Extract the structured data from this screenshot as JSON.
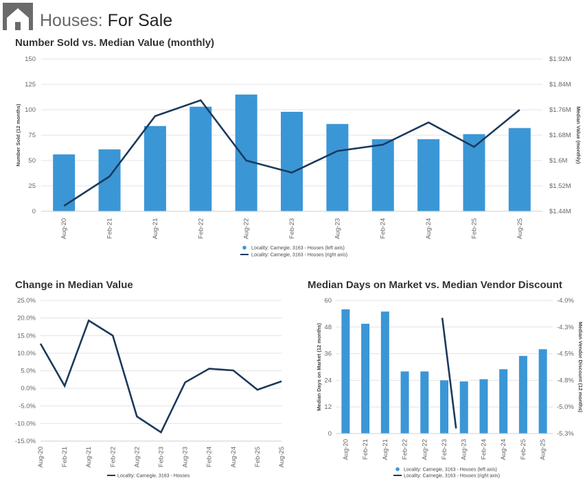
{
  "page": {
    "title_part1": "Houses:",
    "title_part2": "For Sale",
    "icon": "house-icon"
  },
  "colors": {
    "bar": "#3b96d6",
    "line": "#1b3a5c",
    "grid": "#e3e3e3",
    "text": "#666666"
  },
  "chart_data": [
    {
      "id": "sold_vs_value",
      "type": "bar+line",
      "title": "Number Sold vs. Median Value (monthly)",
      "categories": [
        "Aug-20",
        "Feb-21",
        "Aug-21",
        "Feb-22",
        "Aug-22",
        "Feb-23",
        "Aug-23",
        "Feb-24",
        "Aug-24",
        "Feb-25",
        "Aug-25"
      ],
      "ylabel": "Number Sold (12 months)",
      "y2label": "Median Value (monthly)",
      "ylim": [
        0,
        150
      ],
      "yticks": [
        "0",
        "25",
        "50",
        "75",
        "100",
        "125",
        "150"
      ],
      "y2lim": [
        1.44,
        1.92
      ],
      "y2ticks": [
        "$1.44M",
        "$1.52M",
        "$1.6M",
        "$1.68M",
        "$1.76M",
        "$1.84M",
        "$1.92M"
      ],
      "series": [
        {
          "name": "Locality: Carnegie, 3163 - Houses (left axis)",
          "kind": "bar",
          "values": [
            56,
            61,
            84,
            103,
            115,
            98,
            86,
            71,
            71,
            76,
            82
          ]
        },
        {
          "name": "Locality: Carnegie, 3163 - Houses (right axis)",
          "kind": "line",
          "values": [
            1.457,
            1.55,
            1.74,
            1.79,
            1.6,
            1.562,
            1.63,
            1.65,
            1.72,
            1.643,
            1.76
          ]
        }
      ]
    },
    {
      "id": "change_median",
      "type": "line",
      "title": "Change in Median Value",
      "categories": [
        "Aug-20",
        "Feb-21",
        "Aug-21",
        "Feb-22",
        "Aug-22",
        "Feb-23",
        "Aug-23",
        "Feb-24",
        "Aug-24",
        "Feb-25",
        "Aug-25"
      ],
      "ylim": [
        -15,
        25
      ],
      "yticks": [
        "-15.0%",
        "-10.0%",
        "-5.0%",
        "0.0%",
        "5.0%",
        "10.0%",
        "15.0%",
        "20.0%",
        "25.0%"
      ],
      "series": [
        {
          "name": "Locality: Carnegie, 3163 - Houses",
          "values": [
            12.7,
            0.7,
            19.3,
            15.0,
            -8.0,
            -12.5,
            1.7,
            5.6,
            5.1,
            -0.4,
            2.0
          ]
        }
      ]
    },
    {
      "id": "days_vs_discount",
      "type": "bar+line",
      "title": "Median Days on Market vs. Median Vendor Discount",
      "categories": [
        "Aug-20",
        "Feb-21",
        "Aug-21",
        "Feb-22",
        "Aug-22",
        "Feb-23",
        "Aug-23",
        "Feb-24",
        "Aug-24",
        "Feb-25",
        "Aug-25"
      ],
      "ylabel": "Median Days on Market (12 months)",
      "y2label": "Median Vendor Discount (12 months)",
      "ylim": [
        0,
        60
      ],
      "yticks": [
        "0",
        "12",
        "24",
        "36",
        "48",
        "60"
      ],
      "y2lim": [
        -5.3,
        -4.0
      ],
      "y2ticks": [
        "-5.3%",
        "-5.0%",
        "-4.8%",
        "-4.5%",
        "-4.3%",
        "-4.0%"
      ],
      "series": [
        {
          "name": "Locality: Carnegie, 3163 - Houses (left axis)",
          "kind": "bar",
          "values": [
            56,
            49.5,
            55,
            28,
            28,
            24,
            23.5,
            24.5,
            29,
            35,
            38
          ]
        },
        {
          "name": "Locality: Carnegie, 3163 - Houses (right axis)",
          "kind": "line",
          "points": [
            [
              4.9,
              -4.17
            ],
            [
              5.6,
              -5.25
            ]
          ]
        }
      ]
    }
  ]
}
